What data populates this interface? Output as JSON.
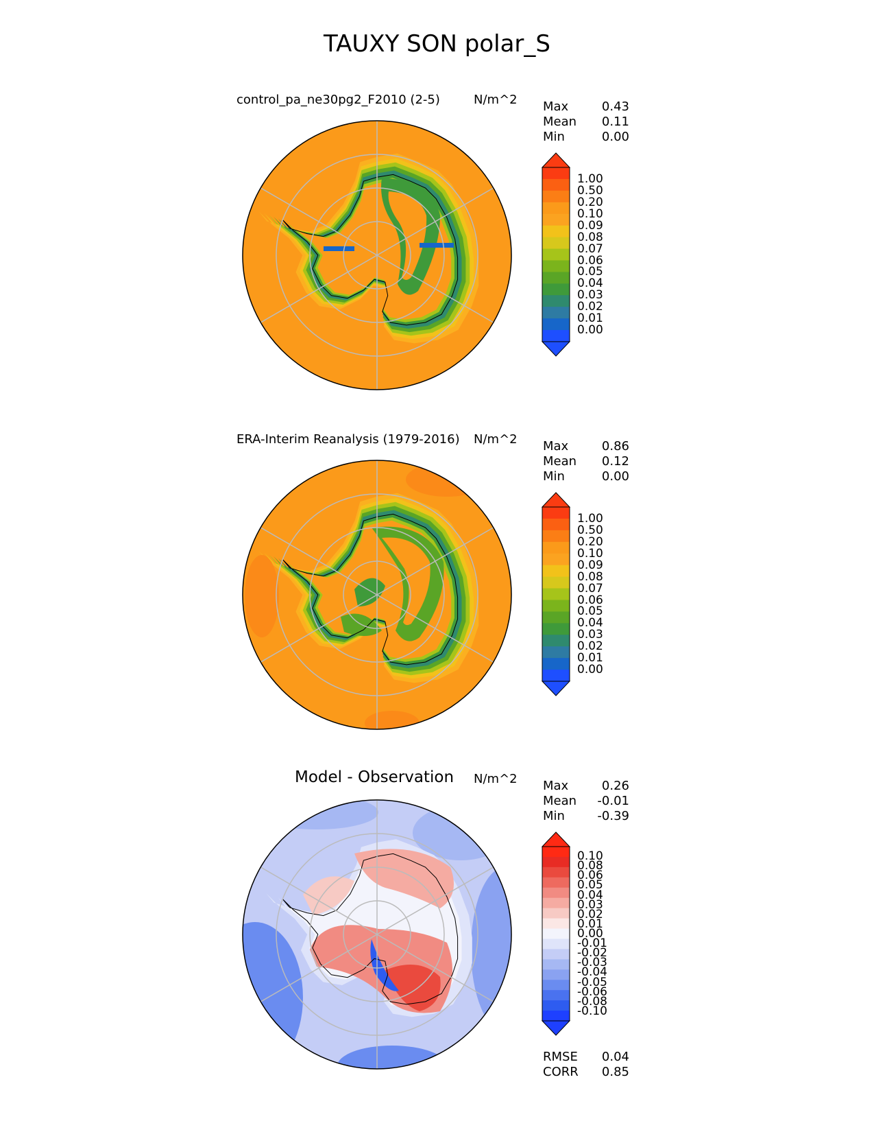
{
  "figure_title": "TAUXY SON polar_S",
  "colors": {
    "seq": [
      "#1e4fff",
      "#1766c9",
      "#2e7ba3",
      "#2f8a6e",
      "#3f9a3a",
      "#5aa526",
      "#7bb41c",
      "#a6c41a",
      "#d7c81c",
      "#f2c21a",
      "#fba320",
      "#fb9a1a",
      "#fb7e15",
      "#fb6012",
      "#fb3c12"
    ],
    "div": [
      "#1e40ff",
      "#2e5cf0",
      "#4a72ef",
      "#6a8cf0",
      "#8aa2f1",
      "#a6b8f3",
      "#c4cdf6",
      "#dfe4fa",
      "#f3f4fc",
      "#fbe7e5",
      "#f7cac4",
      "#f5aba2",
      "#f18b82",
      "#ee6a5f",
      "#ea4a3e",
      "#e82c24",
      "#ff2a14"
    ],
    "land_outline": "#000000",
    "grid": "#bbbbbb"
  },
  "chart_data": [
    {
      "type": "heatmap",
      "title": "control_pa_ne30pg2_F2010 (2-5)",
      "units": "N/m^2",
      "projection": "polar stereographic, south pole",
      "stats": {
        "max_label": "Max",
        "max": "0.43",
        "mean_label": "Mean",
        "mean": "0.11",
        "min_label": "Min",
        "min": "0.00"
      },
      "colorbar_ticks": [
        "1.00",
        "0.50",
        "0.20",
        "0.10",
        "0.09",
        "0.08",
        "0.07",
        "0.06",
        "0.05",
        "0.04",
        "0.03",
        "0.02",
        "0.01",
        "0.00"
      ],
      "colorbar_extend": "both",
      "colormap": "sequential blue-green-orange-red"
    },
    {
      "type": "heatmap",
      "title": "ERA-Interim Reanalysis (1979-2016)",
      "units": "N/m^2",
      "projection": "polar stereographic, south pole",
      "stats": {
        "max_label": "Max",
        "max": "0.86",
        "mean_label": "Mean",
        "mean": "0.12",
        "min_label": "Min",
        "min": "0.00"
      },
      "colorbar_ticks": [
        "1.00",
        "0.50",
        "0.20",
        "0.10",
        "0.09",
        "0.08",
        "0.07",
        "0.06",
        "0.05",
        "0.04",
        "0.03",
        "0.02",
        "0.01",
        "0.00"
      ],
      "colorbar_extend": "both",
      "colormap": "sequential blue-green-orange-red"
    },
    {
      "type": "heatmap",
      "title": "Model - Observation",
      "units": "N/m^2",
      "projection": "polar stereographic, south pole",
      "stats": {
        "max_label": "Max",
        "max": "0.26",
        "mean_label": "Mean",
        "mean": "-0.01",
        "min_label": "Min",
        "min": "-0.39"
      },
      "metrics": {
        "rmse_label": "RMSE",
        "rmse": "0.04",
        "corr_label": "CORR",
        "corr": "0.85"
      },
      "colorbar_ticks": [
        "0.10",
        "0.08",
        "0.06",
        "0.05",
        "0.04",
        "0.03",
        "0.02",
        "0.01",
        "0.00",
        "-0.01",
        "-0.02",
        "-0.03",
        "-0.04",
        "-0.05",
        "-0.06",
        "-0.08",
        "-0.10"
      ],
      "colorbar_extend": "both",
      "colormap": "diverging blue-white-red"
    }
  ]
}
